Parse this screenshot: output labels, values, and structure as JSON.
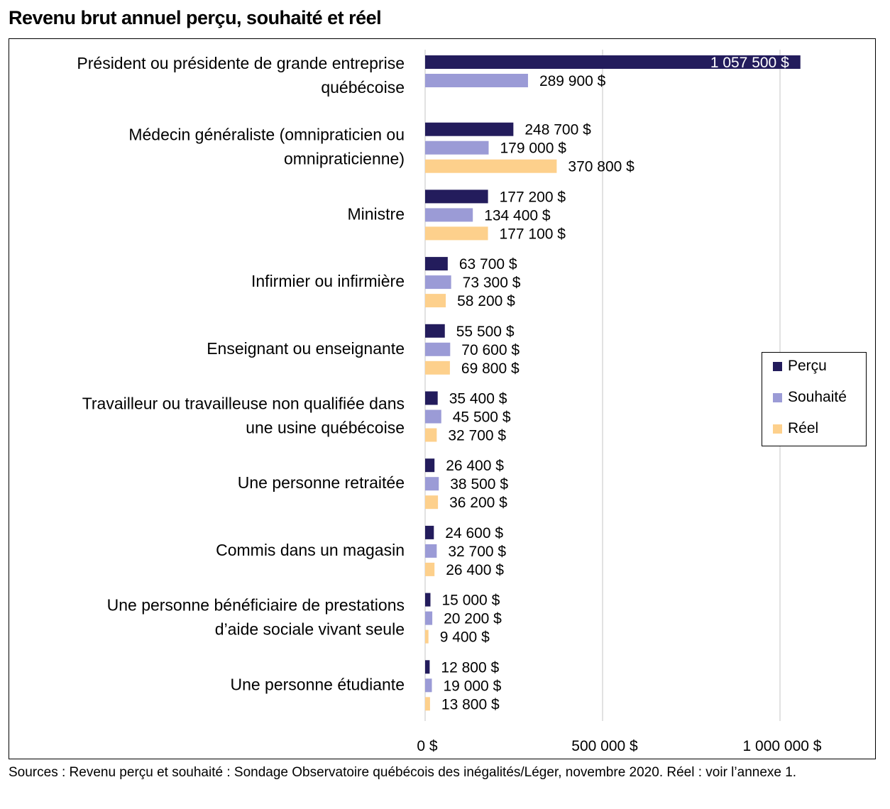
{
  "title": "Revenu brut annuel perçu, souhaité et réel",
  "source": "Sources : Revenu perçu et souhaité : Sondage Observatoire québécois des inégalités/Léger, novembre 2020. Réel : voir l’annexe 1.",
  "colors": {
    "percu": "#231c5c",
    "souhaite": "#9b9bd6",
    "reel": "#fdd08c",
    "grid": "#d9d9d9"
  },
  "chart_data": {
    "type": "bar",
    "orientation": "horizontal",
    "title": "Revenu brut annuel perçu, souhaité et réel",
    "xlim": [
      0,
      1200000
    ],
    "x_ticks": [
      0,
      500000,
      1000000
    ],
    "x_tick_labels": [
      "0 $",
      "500 000 $",
      "1 000 000 $"
    ],
    "grid": true,
    "legend_position": "right",
    "categories": [
      [
        "Président ou présidente de grande entreprise",
        "québécoise"
      ],
      [
        "Médecin généraliste (omnipraticien ou",
        "omnipraticienne)"
      ],
      [
        "Ministre"
      ],
      [
        "Infirmier ou infirmière"
      ],
      [
        "Enseignant ou enseignante"
      ],
      [
        "Travailleur ou travailleuse non qualifiée dans",
        "une usine québécoise"
      ],
      [
        "Une personne retraitée"
      ],
      [
        "Commis dans un magasin"
      ],
      [
        "Une personne bénéficiaire de prestations",
        "d’aide sociale vivant seule"
      ],
      [
        "Une personne étudiante"
      ]
    ],
    "series": [
      {
        "name": "Perçu",
        "color": "#231c5c",
        "values": [
          1057500,
          248700,
          177200,
          63700,
          55500,
          35400,
          26400,
          24600,
          15000,
          12800
        ],
        "labels": [
          "1 057 500 $",
          "248 700 $",
          "177 200 $",
          "63 700 $",
          "55 500 $",
          "35 400 $",
          "26 400 $",
          "24 600 $",
          "15 000 $",
          "12 800 $"
        ]
      },
      {
        "name": "Souhaité",
        "color": "#9b9bd6",
        "values": [
          289900,
          179000,
          134400,
          73300,
          70600,
          45500,
          38500,
          32700,
          20200,
          19000
        ],
        "labels": [
          "289 900 $",
          "179 000 $",
          "134 400 $",
          "73 300 $",
          "70 600 $",
          "45 500 $",
          "38 500 $",
          "32 700 $",
          "20 200 $",
          "19 000 $"
        ]
      },
      {
        "name": "Réel",
        "color": "#fdd08c",
        "values": [
          null,
          370800,
          177100,
          58200,
          69800,
          32700,
          36200,
          26400,
          9400,
          13800
        ],
        "labels": [
          null,
          "370 800 $",
          "177 100 $",
          "58 200 $",
          "69 800 $",
          "32 700 $",
          "36 200 $",
          "26 400 $",
          "9 400 $",
          "13 800 $"
        ]
      }
    ]
  }
}
